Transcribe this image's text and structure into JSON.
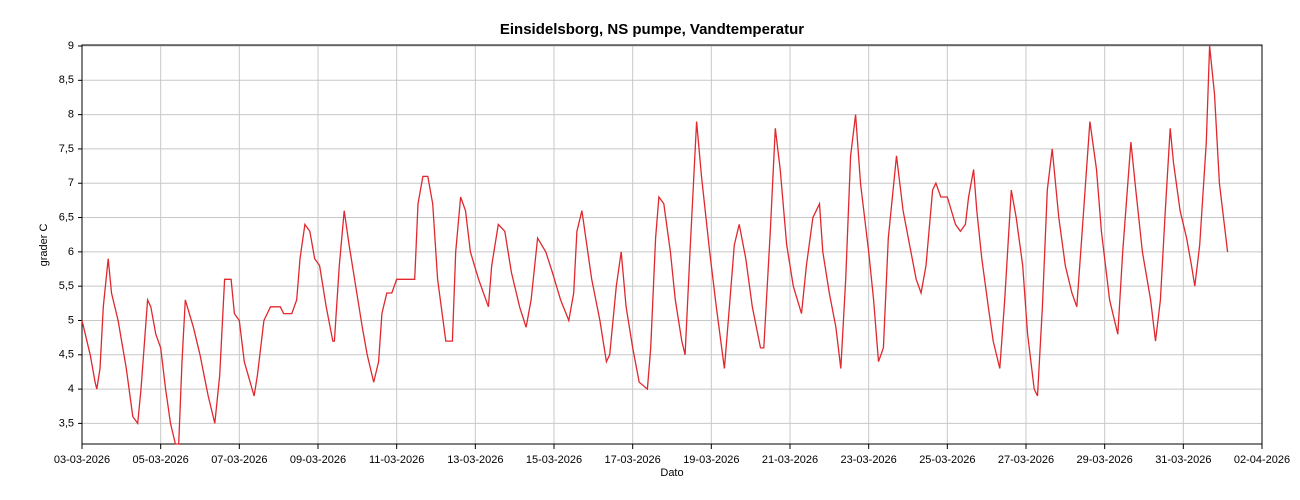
{
  "chart_data": {
    "type": "line",
    "title": "Einsidelsborg, NS pumpe, Vandtemperatur",
    "x_label": "Dato",
    "y_label": "grader C",
    "color": "#e0282e",
    "grid": true,
    "x": [
      "2026-03-03T00:00",
      "2026-03-03T05:00",
      "2026-03-03T08:00",
      "2026-03-03T09:00",
      "2026-03-03T11:00",
      "2026-03-03T13:00",
      "2026-03-03T16:00",
      "2026-03-03T18:00",
      "2026-03-03T22:00",
      "2026-03-04T03:00",
      "2026-03-04T07:00",
      "2026-03-04T10:00",
      "2026-03-04T12:00",
      "2026-03-04T16:00",
      "2026-03-04T18:00",
      "2026-03-04T21:00",
      "2026-03-05T00:00",
      "2026-03-05T03:00",
      "2026-03-05T06:00",
      "2026-03-05T09:00",
      "2026-03-05T11:00",
      "2026-03-05T13:00",
      "2026-03-05T15:00",
      "2026-03-05T20:00",
      "2026-03-06T00:00",
      "2026-03-06T05:00",
      "2026-03-06T09:00",
      "2026-03-06T12:00",
      "2026-03-06T15:00",
      "2026-03-06T19:00",
      "2026-03-06T21:00",
      "2026-03-07T00:00",
      "2026-03-07T03:00",
      "2026-03-07T09:00",
      "2026-03-07T11:00",
      "2026-03-07T15:00",
      "2026-03-07T19:00",
      "2026-03-08T01:00",
      "2026-03-08T03:00",
      "2026-03-08T08:00",
      "2026-03-08T11:00",
      "2026-03-08T13:00",
      "2026-03-08T16:00",
      "2026-03-08T19:00",
      "2026-03-08T22:00",
      "2026-03-09T01:00",
      "2026-03-09T05:00",
      "2026-03-09T09:00",
      "2026-03-09T10:00",
      "2026-03-09T13:00",
      "2026-03-09T16:00",
      "2026-03-09T19:00",
      "2026-03-09T23:00",
      "2026-03-10T03:00",
      "2026-03-10T06:00",
      "2026-03-10T10:00",
      "2026-03-10T13:00",
      "2026-03-10T15:00",
      "2026-03-10T18:00",
      "2026-03-10T21:00",
      "2026-03-11T00:00",
      "2026-03-11T11:00",
      "2026-03-11T13:00",
      "2026-03-11T16:00",
      "2026-03-11T19:00",
      "2026-03-11T22:00",
      "2026-03-12T01:00",
      "2026-03-12T06:00",
      "2026-03-12T10:00",
      "2026-03-12T12:00",
      "2026-03-12T15:00",
      "2026-03-12T18:00",
      "2026-03-12T21:00",
      "2026-03-13T02:00",
      "2026-03-13T08:00",
      "2026-03-13T10:00",
      "2026-03-13T14:00",
      "2026-03-13T18:00",
      "2026-03-13T22:00",
      "2026-03-14T03:00",
      "2026-03-14T07:00",
      "2026-03-14T10:00",
      "2026-03-14T14:00",
      "2026-03-14T19:00",
      "2026-03-14T23:00",
      "2026-03-15T04:00",
      "2026-03-15T09:00",
      "2026-03-15T12:00",
      "2026-03-15T14:00",
      "2026-03-15T17:00",
      "2026-03-15T20:00",
      "2026-03-15T23:00",
      "2026-03-16T04:00",
      "2026-03-16T08:00",
      "2026-03-16T10:00",
      "2026-03-16T14:00",
      "2026-03-16T17:00",
      "2026-03-16T20:00",
      "2026-03-17T00:00",
      "2026-03-17T04:00",
      "2026-03-17T09:00",
      "2026-03-17T11:00",
      "2026-03-17T14:00",
      "2026-03-17T16:00",
      "2026-03-17T19:00",
      "2026-03-17T23:00",
      "2026-03-18T02:00",
      "2026-03-18T06:00",
      "2026-03-18T08:00",
      "2026-03-18T11:00",
      "2026-03-18T15:00",
      "2026-03-18T18:00",
      "2026-03-18T23:00",
      "2026-03-19T03:00",
      "2026-03-19T08:00",
      "2026-03-19T11:00",
      "2026-03-19T14:00",
      "2026-03-19T17:00",
      "2026-03-19T21:00",
      "2026-03-20T01:00",
      "2026-03-20T06:00",
      "2026-03-20T08:00",
      "2026-03-20T12:00",
      "2026-03-20T15:00",
      "2026-03-20T18:00",
      "2026-03-20T22:00",
      "2026-03-21T02:00",
      "2026-03-21T07:00",
      "2026-03-21T10:00",
      "2026-03-21T14:00",
      "2026-03-21T18:00",
      "2026-03-21T20:00",
      "2026-03-22T00:00",
      "2026-03-22T04:00",
      "2026-03-22T07:00",
      "2026-03-22T10:00",
      "2026-03-22T13:00",
      "2026-03-22T16:00",
      "2026-03-22T19:00",
      "2026-03-23T00:00",
      "2026-03-23T03:00",
      "2026-03-23T06:00",
      "2026-03-23T09:00",
      "2026-03-23T12:00",
      "2026-03-23T17:00",
      "2026-03-23T21:00",
      "2026-03-24T01:00",
      "2026-03-24T05:00",
      "2026-03-24T08:00",
      "2026-03-24T11:00",
      "2026-03-24T15:00",
      "2026-03-24T17:00",
      "2026-03-24T20:00",
      "2026-03-25T00:00",
      "2026-03-25T05:00",
      "2026-03-25T08:00",
      "2026-03-25T11:00",
      "2026-03-25T13:00",
      "2026-03-25T16:00",
      "2026-03-25T18:00",
      "2026-03-25T21:00",
      "2026-03-26T01:00",
      "2026-03-26T04:00",
      "2026-03-26T08:00",
      "2026-03-26T11:00",
      "2026-03-26T15:00",
      "2026-03-26T18:00",
      "2026-03-26T22:00",
      "2026-03-27T01:00",
      "2026-03-27T05:00",
      "2026-03-27T07:00",
      "2026-03-27T10:00",
      "2026-03-27T13:00",
      "2026-03-27T16:00",
      "2026-03-27T20:00",
      "2026-03-28T00:00",
      "2026-03-28T04:00",
      "2026-03-28T07:00",
      "2026-03-28T10:00",
      "2026-03-28T15:00",
      "2026-03-28T19:00",
      "2026-03-28T22:00",
      "2026-03-29T03:00",
      "2026-03-29T08:00",
      "2026-03-29T11:00",
      "2026-03-29T16:00",
      "2026-03-29T19:00",
      "2026-03-29T23:00",
      "2026-03-30T04:00",
      "2026-03-30T07:00",
      "2026-03-30T10:00",
      "2026-03-30T13:00",
      "2026-03-30T16:00",
      "2026-03-30T18:00",
      "2026-03-30T22:00",
      "2026-03-31T02:00",
      "2026-03-31T05:00",
      "2026-03-31T07:00",
      "2026-03-31T10:00",
      "2026-03-31T14:00",
      "2026-03-31T16:00",
      "2026-03-31T19:00",
      "2026-03-31T22:00",
      "2026-04-01T03:00"
    ],
    "values": [
      5.0,
      4.5,
      4.1,
      4.0,
      4.3,
      5.2,
      5.9,
      5.4,
      5.0,
      4.3,
      3.6,
      3.5,
      4.0,
      5.3,
      5.2,
      4.8,
      4.6,
      4.0,
      3.5,
      3.2,
      3.2,
      4.4,
      5.3,
      4.9,
      4.5,
      3.9,
      3.5,
      4.2,
      5.6,
      5.6,
      5.1,
      5.0,
      4.4,
      3.9,
      4.2,
      5.0,
      5.2,
      5.2,
      5.1,
      5.1,
      5.3,
      5.9,
      6.4,
      6.3,
      5.9,
      5.8,
      5.2,
      4.7,
      4.7,
      5.8,
      6.6,
      6.1,
      5.5,
      4.9,
      4.5,
      4.1,
      4.4,
      5.1,
      5.4,
      5.4,
      5.6,
      5.6,
      6.7,
      7.1,
      7.1,
      6.7,
      5.6,
      4.7,
      4.7,
      6.0,
      6.8,
      6.6,
      6.0,
      5.6,
      5.2,
      5.8,
      6.4,
      6.3,
      5.7,
      5.2,
      4.9,
      5.3,
      6.2,
      6.0,
      5.7,
      5.3,
      5.0,
      5.4,
      6.3,
      6.6,
      6.1,
      5.6,
      5.0,
      4.4,
      4.5,
      5.5,
      6.0,
      5.2,
      4.6,
      4.1,
      4.0,
      4.6,
      6.2,
      6.8,
      6.7,
      6.0,
      5.3,
      4.7,
      4.5,
      6.0,
      7.9,
      7.1,
      6.0,
      5.2,
      4.3,
      5.2,
      6.1,
      6.4,
      5.9,
      5.2,
      4.6,
      4.6,
      6.3,
      7.8,
      7.2,
      6.1,
      5.5,
      5.1,
      5.8,
      6.5,
      6.7,
      6.0,
      5.4,
      4.9,
      4.3,
      5.6,
      7.4,
      8.0,
      7.0,
      6.0,
      5.3,
      4.4,
      4.6,
      6.2,
      7.4,
      6.6,
      6.1,
      5.6,
      5.4,
      5.8,
      6.9,
      7.0,
      6.8,
      6.8,
      6.4,
      6.3,
      6.4,
      6.8,
      7.2,
      6.6,
      5.9,
      5.2,
      4.7,
      4.3,
      5.3,
      6.9,
      6.5,
      5.8,
      4.8,
      4.0,
      3.9,
      5.2,
      6.9,
      7.5,
      6.5,
      5.8,
      5.4,
      5.2,
      6.2,
      7.9,
      7.2,
      6.3,
      5.3,
      4.8,
      6.0,
      7.6,
      6.9,
      6.0,
      5.3,
      4.7,
      5.3,
      6.6,
      7.8,
      7.3,
      6.6,
      6.2,
      5.8,
      5.5,
      6.1,
      7.6,
      9.0,
      8.3,
      7.0,
      6.0
    ],
    "xlim": [
      "2026-03-03T00:00",
      "2026-04-02T00:00"
    ],
    "xticks": [
      {
        "value": "2026-03-03T00:00",
        "label": "03-03-2026"
      },
      {
        "value": "2026-03-05T00:00",
        "label": "05-03-2026"
      },
      {
        "value": "2026-03-07T00:00",
        "label": "07-03-2026"
      },
      {
        "value": "2026-03-09T00:00",
        "label": "09-03-2026"
      },
      {
        "value": "2026-03-11T00:00",
        "label": "11-03-2026"
      },
      {
        "value": "2026-03-13T00:00",
        "label": "13-03-2026"
      },
      {
        "value": "2026-03-15T00:00",
        "label": "15-03-2026"
      },
      {
        "value": "2026-03-17T00:00",
        "label": "17-03-2026"
      },
      {
        "value": "2026-03-19T00:00",
        "label": "19-03-2026"
      },
      {
        "value": "2026-03-21T00:00",
        "label": "21-03-2026"
      },
      {
        "value": "2026-03-23T00:00",
        "label": "23-03-2026"
      },
      {
        "value": "2026-03-25T00:00",
        "label": "25-03-2026"
      },
      {
        "value": "2026-03-27T00:00",
        "label": "27-03-2026"
      },
      {
        "value": "2026-03-29T00:00",
        "label": "29-03-2026"
      },
      {
        "value": "2026-03-31T00:00",
        "label": "31-03-2026"
      },
      {
        "value": "2026-04-02T00:00",
        "label": "02-04-2026"
      }
    ],
    "ylim": [
      3.2,
      9
    ],
    "yticks": [
      {
        "value": 3.5,
        "label": "3,5"
      },
      4,
      {
        "value": 4.5,
        "label": "4,5"
      },
      5,
      {
        "value": 5.5,
        "label": "5,5"
      },
      6,
      {
        "value": 6.5,
        "label": "6,5"
      },
      7,
      {
        "value": 7.5,
        "label": "7,5"
      },
      8,
      {
        "value": 8.5,
        "label": "8,5"
      },
      9
    ]
  }
}
